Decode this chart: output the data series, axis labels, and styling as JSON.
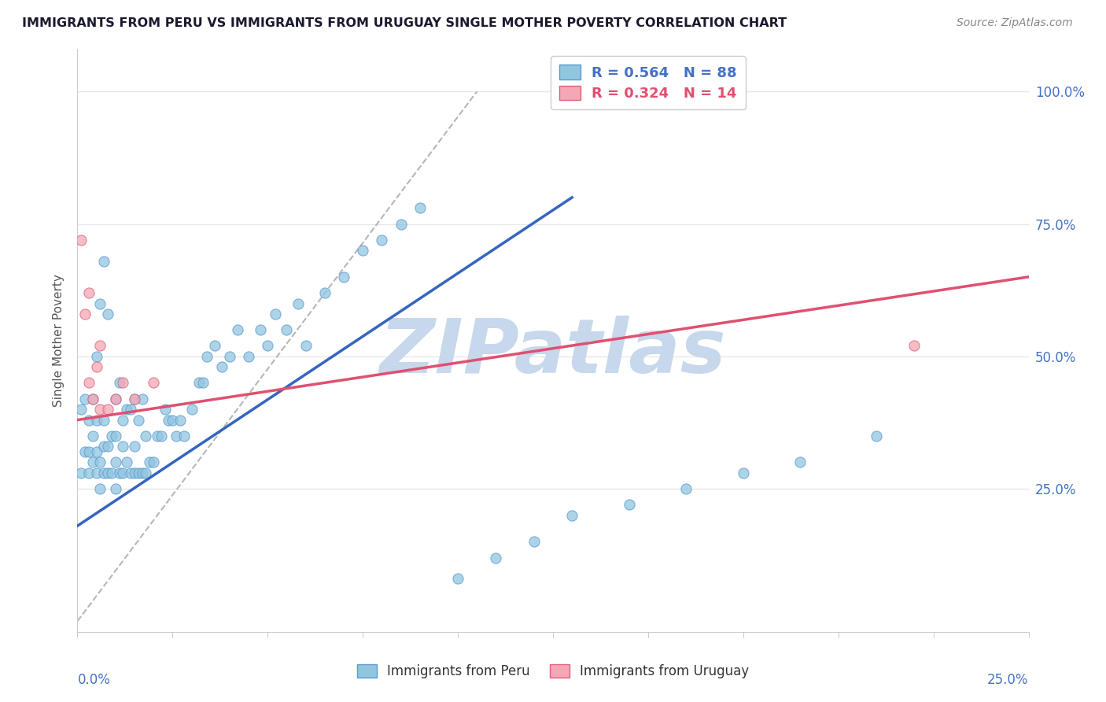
{
  "title": "IMMIGRANTS FROM PERU VS IMMIGRANTS FROM URUGUAY SINGLE MOTHER POVERTY CORRELATION CHART",
  "source": "Source: ZipAtlas.com",
  "ylabel": "Single Mother Poverty",
  "xlim": [
    0.0,
    0.25
  ],
  "ylim": [
    -0.02,
    1.08
  ],
  "peru_R": 0.564,
  "peru_N": 88,
  "uruguay_R": 0.324,
  "uruguay_N": 14,
  "peru_color": "#92c5de",
  "peru_edge": "#5b9bd5",
  "uruguay_color": "#f4a7b4",
  "uruguay_edge": "#e06080",
  "peru_scatter_x": [
    0.001,
    0.001,
    0.002,
    0.002,
    0.003,
    0.003,
    0.003,
    0.004,
    0.004,
    0.004,
    0.005,
    0.005,
    0.005,
    0.005,
    0.006,
    0.006,
    0.006,
    0.007,
    0.007,
    0.007,
    0.007,
    0.008,
    0.008,
    0.008,
    0.009,
    0.009,
    0.01,
    0.01,
    0.01,
    0.01,
    0.011,
    0.011,
    0.012,
    0.012,
    0.012,
    0.013,
    0.013,
    0.014,
    0.014,
    0.015,
    0.015,
    0.015,
    0.016,
    0.016,
    0.017,
    0.017,
    0.018,
    0.018,
    0.019,
    0.02,
    0.021,
    0.022,
    0.023,
    0.024,
    0.025,
    0.026,
    0.027,
    0.028,
    0.03,
    0.032,
    0.033,
    0.034,
    0.036,
    0.038,
    0.04,
    0.042,
    0.045,
    0.048,
    0.05,
    0.052,
    0.055,
    0.058,
    0.06,
    0.065,
    0.07,
    0.075,
    0.08,
    0.085,
    0.09,
    0.1,
    0.11,
    0.12,
    0.13,
    0.145,
    0.16,
    0.175,
    0.19,
    0.21
  ],
  "peru_scatter_y": [
    0.28,
    0.4,
    0.32,
    0.42,
    0.28,
    0.32,
    0.38,
    0.3,
    0.35,
    0.42,
    0.28,
    0.32,
    0.38,
    0.5,
    0.25,
    0.3,
    0.6,
    0.28,
    0.33,
    0.38,
    0.68,
    0.28,
    0.33,
    0.58,
    0.28,
    0.35,
    0.25,
    0.3,
    0.35,
    0.42,
    0.28,
    0.45,
    0.28,
    0.33,
    0.38,
    0.3,
    0.4,
    0.28,
    0.4,
    0.28,
    0.33,
    0.42,
    0.28,
    0.38,
    0.28,
    0.42,
    0.28,
    0.35,
    0.3,
    0.3,
    0.35,
    0.35,
    0.4,
    0.38,
    0.38,
    0.35,
    0.38,
    0.35,
    0.4,
    0.45,
    0.45,
    0.5,
    0.52,
    0.48,
    0.5,
    0.55,
    0.5,
    0.55,
    0.52,
    0.58,
    0.55,
    0.6,
    0.52,
    0.62,
    0.65,
    0.7,
    0.72,
    0.75,
    0.78,
    0.08,
    0.12,
    0.15,
    0.2,
    0.22,
    0.25,
    0.28,
    0.3,
    0.35
  ],
  "uruguay_scatter_x": [
    0.001,
    0.002,
    0.003,
    0.003,
    0.004,
    0.005,
    0.006,
    0.006,
    0.008,
    0.01,
    0.012,
    0.015,
    0.02,
    0.22
  ],
  "uruguay_scatter_y": [
    0.72,
    0.58,
    0.45,
    0.62,
    0.42,
    0.48,
    0.4,
    0.52,
    0.4,
    0.42,
    0.45,
    0.42,
    0.45,
    0.52
  ],
  "peru_line_x": [
    0.0,
    0.13
  ],
  "peru_line_y": [
    0.18,
    0.8
  ],
  "uruguay_line_x": [
    0.0,
    0.25
  ],
  "uruguay_line_y": [
    0.38,
    0.65
  ],
  "ref_line_x": [
    0.0,
    0.105
  ],
  "ref_line_y": [
    0.0,
    1.0
  ],
  "watermark": "ZIPatlas",
  "watermark_color": "#c8d8ec",
  "background_color": "#ffffff",
  "grid_color": "#e8e8e8",
  "axis_color": "#4472c4",
  "title_color": "#1a1a2e",
  "ylabel_color": "#555555",
  "source_color": "#888888",
  "legend_box_color": "#cccccc"
}
